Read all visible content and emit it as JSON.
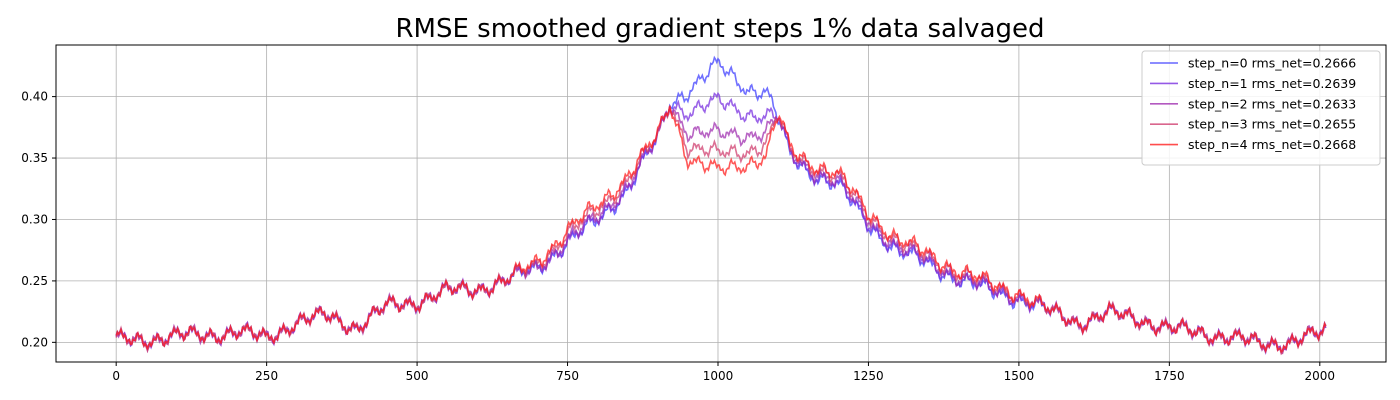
{
  "chart_data": {
    "type": "line",
    "title": "RMSE smoothed gradient steps 1% data salvaged",
    "xlabel": "",
    "ylabel": "",
    "xlim": [
      -100,
      2110
    ],
    "ylim": [
      0.184,
      0.442
    ],
    "xticks": [
      0,
      250,
      500,
      750,
      1000,
      1250,
      1500,
      1750,
      2000
    ],
    "yticks": [
      0.2,
      0.25,
      0.3,
      0.35,
      0.4
    ],
    "grid": true,
    "legend_position": "top-right",
    "shared_profile": {
      "x": [
        0,
        50,
        100,
        150,
        200,
        250,
        300,
        350,
        400,
        450,
        500,
        550,
        600,
        650,
        700,
        750,
        800,
        850,
        900,
        920,
        950,
        1000,
        1050,
        1080,
        1100,
        1120,
        1150,
        1200,
        1250,
        1300,
        1350,
        1400,
        1450,
        1500,
        1550,
        1600,
        1650,
        1700,
        1750,
        1800,
        1850,
        1900,
        1950,
        2000,
        2010
      ],
      "y": [
        0.2,
        0.202,
        0.205,
        0.207,
        0.21,
        0.205,
        0.218,
        0.222,
        0.212,
        0.228,
        0.232,
        0.24,
        0.243,
        0.25,
        0.262,
        0.285,
        0.305,
        0.33,
        0.365,
        0.395,
        0.36,
        0.35,
        0.36,
        0.365,
        0.382,
        0.35,
        0.338,
        0.33,
        0.3,
        0.278,
        0.268,
        0.255,
        0.245,
        0.238,
        0.225,
        0.215,
        0.222,
        0.218,
        0.21,
        0.208,
        0.205,
        0.2,
        0.202,
        0.208,
        0.21
      ]
    },
    "series": [
      {
        "name": "step_n=0 rms_net=0.2666",
        "color": "#4040ff",
        "offsets": [
          0,
          0,
          0,
          0,
          0,
          0,
          0,
          0,
          0,
          0,
          0,
          0,
          0,
          0,
          0,
          -0.003,
          -0.004,
          -0.004,
          0.002,
          0.0,
          0.045,
          0.075,
          0.045,
          0.038,
          -0.002,
          0.0,
          0.0,
          -0.003,
          -0.004,
          -0.003,
          -0.003,
          -0.002,
          -0.002,
          -0.002,
          0,
          0,
          0,
          0,
          0,
          0,
          0,
          0,
          0,
          0,
          0
        ]
      },
      {
        "name": "step_n=1 rms_net=0.2639",
        "color": "#7a30e0",
        "offsets": [
          0,
          0,
          0,
          0,
          0,
          0,
          0,
          0,
          0,
          0,
          0,
          0,
          0,
          0,
          0,
          -0.003,
          -0.003,
          -0.003,
          0.002,
          0.0,
          0.028,
          0.045,
          0.025,
          0.018,
          -0.001,
          0.001,
          0.001,
          -0.002,
          -0.003,
          -0.002,
          -0.002,
          -0.001,
          -0.001,
          -0.001,
          0,
          0,
          0,
          0,
          0,
          0,
          0,
          0,
          0,
          0,
          0
        ]
      },
      {
        "name": "step_n=2 rms_net=0.2633",
        "color": "#a030b0",
        "offsets": [
          0,
          0,
          0,
          0,
          0,
          0,
          0,
          0,
          0,
          0,
          0,
          0,
          0,
          0,
          0,
          -0.001,
          -0.001,
          -0.001,
          0.002,
          0.0,
          0.012,
          0.018,
          0.008,
          0.005,
          0.0,
          0.002,
          0.003,
          0.0,
          0.0,
          0.0,
          0.0,
          0.0,
          0.0,
          0.0,
          0,
          0,
          0,
          0,
          0,
          0,
          0,
          0,
          0,
          0,
          0
        ]
      },
      {
        "name": "step_n=3 rms_net=0.2655",
        "color": "#d04070",
        "offsets": [
          0,
          0,
          0,
          0,
          0,
          0,
          0,
          0,
          0,
          0,
          0,
          0,
          0,
          0,
          0.003,
          0.004,
          0.004,
          0.004,
          0.003,
          0.0,
          0.0,
          0.002,
          -0.005,
          -0.005,
          0.001,
          0.004,
          0.006,
          0.004,
          0.004,
          0.004,
          0.003,
          0.003,
          0.003,
          0.002,
          0,
          0,
          0,
          0,
          0,
          0,
          0,
          0,
          0,
          0,
          0
        ]
      },
      {
        "name": "step_n=4 rms_net=0.2668",
        "color": "#ff2020",
        "offsets": [
          0,
          0,
          0,
          0,
          0,
          0,
          0,
          0,
          0,
          0,
          0,
          0,
          0,
          0,
          0.005,
          0.007,
          0.008,
          0.007,
          0.004,
          0.0,
          -0.01,
          -0.012,
          -0.015,
          -0.015,
          0.002,
          0.006,
          0.008,
          0.006,
          0.006,
          0.006,
          0.005,
          0.005,
          0.004,
          0.003,
          0,
          0,
          0,
          0,
          0,
          0,
          0,
          0,
          0,
          0,
          0
        ]
      }
    ]
  }
}
